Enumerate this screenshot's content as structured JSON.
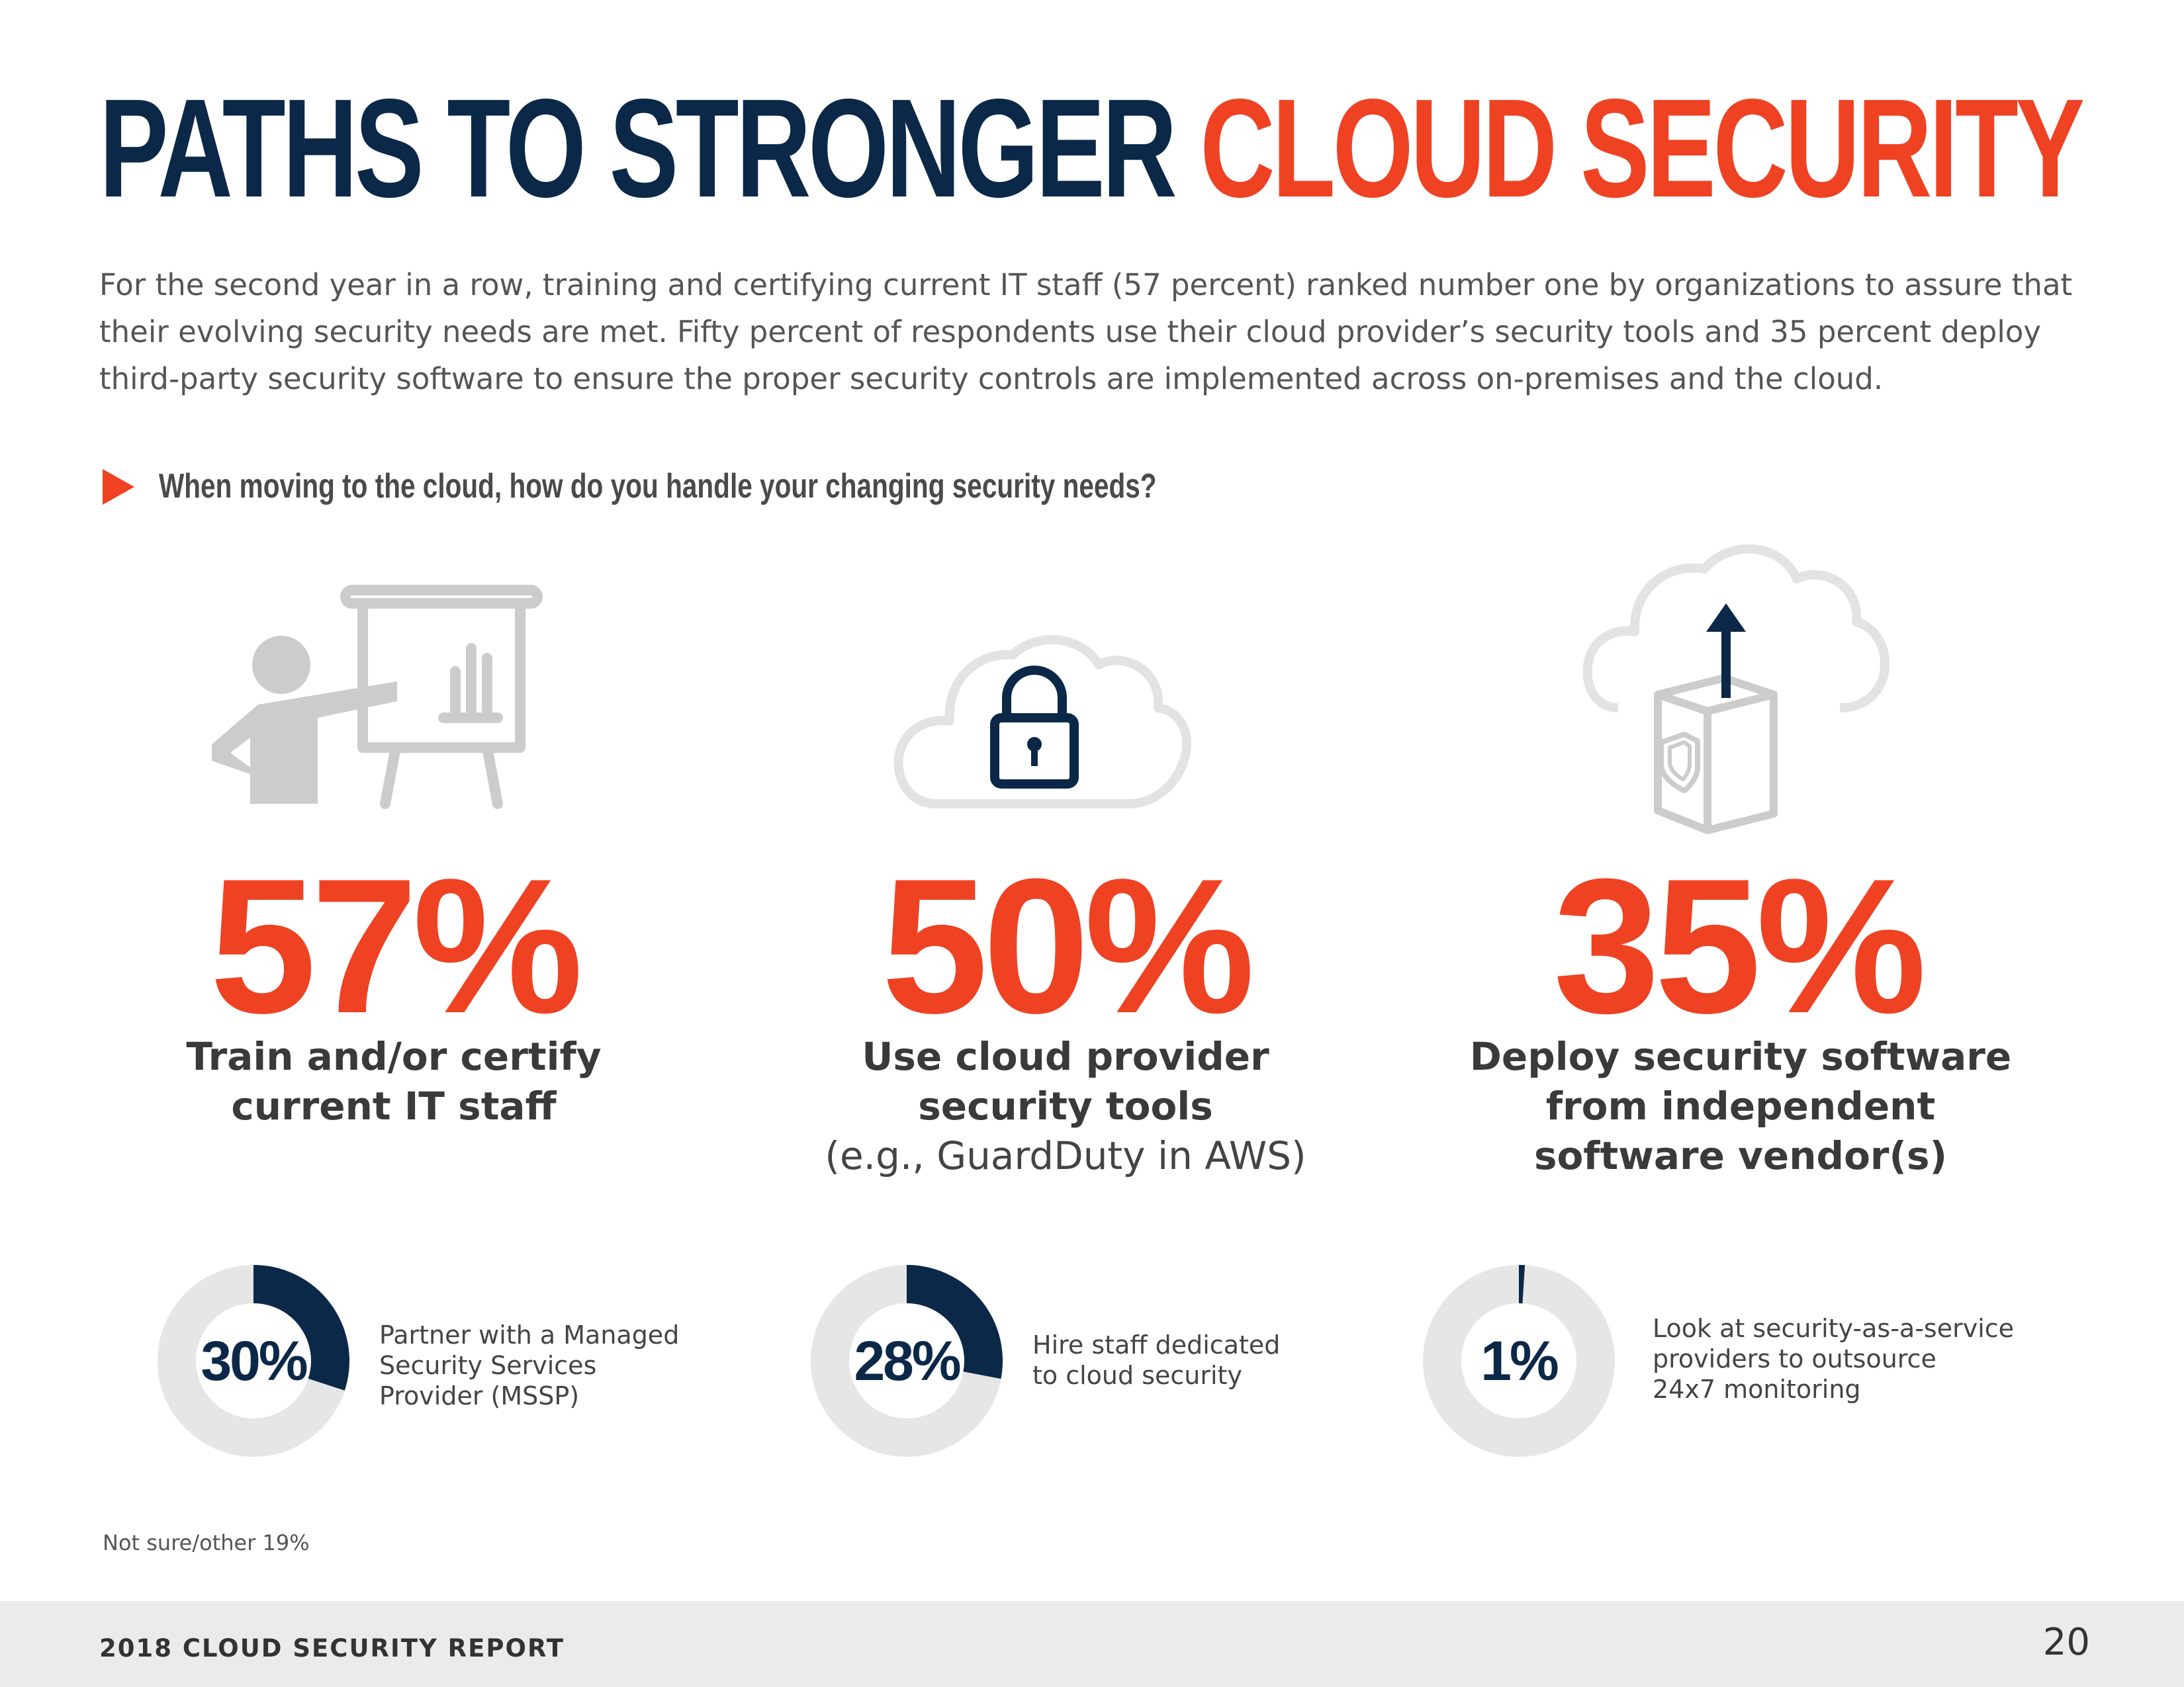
{
  "header": {
    "title_main": "PATHS TO STRONGER",
    "title_accent": "CLOUD SECURITY"
  },
  "intro": "For the second year in a row, training and certifying current IT staff (57 percent) ranked number one by organizations to assure that their evolving security needs are met. Fifty percent of respondents use their cloud provider’s security tools and 35 percent deploy third-party security software to ensure the proper security controls are implemented across on-premises and the cloud.",
  "question": "When moving to the cloud, how do you handle your changing security needs?",
  "main_stats": [
    {
      "value": "57%",
      "label_lines": [
        "Train and/or certify",
        "current IT staff"
      ],
      "note": "",
      "icon": "presenter-whiteboard-icon"
    },
    {
      "value": "50%",
      "label_lines": [
        "Use cloud provider",
        "security tools"
      ],
      "note": "(e.g., GuardDuty in AWS)",
      "icon": "cloud-lock-icon"
    },
    {
      "value": "35%",
      "label_lines": [
        "Deploy security software",
        "from independent",
        "software vendor(s)"
      ],
      "note": "",
      "icon": "cloud-upload-software-icon"
    }
  ],
  "chart_data": {
    "type": "pie",
    "style": "donut",
    "colors": {
      "filled": "#0c2848",
      "remaining": "#e6e6e6"
    },
    "items": [
      {
        "label": "30%",
        "value": 30,
        "description_lines": [
          "Partner with a Managed",
          "Security Services",
          "Provider (MSSP)"
        ]
      },
      {
        "label": "28%",
        "value": 28,
        "description_lines": [
          "Hire staff dedicated",
          "to cloud security"
        ]
      },
      {
        "label": "1%",
        "value": 1,
        "description_lines": [
          "Look at security-as-a-service",
          "providers to outsource",
          "24x7 monitoring"
        ]
      }
    ]
  },
  "footnote": "Not sure/other 19%",
  "footer": {
    "title": "2018 CLOUD SECURITY REPORT",
    "page": "20"
  },
  "colors": {
    "navy": "#0c2848",
    "orange": "#ee4223",
    "gray_icon": "#cccccc",
    "footer_bg": "#ebebeb"
  }
}
